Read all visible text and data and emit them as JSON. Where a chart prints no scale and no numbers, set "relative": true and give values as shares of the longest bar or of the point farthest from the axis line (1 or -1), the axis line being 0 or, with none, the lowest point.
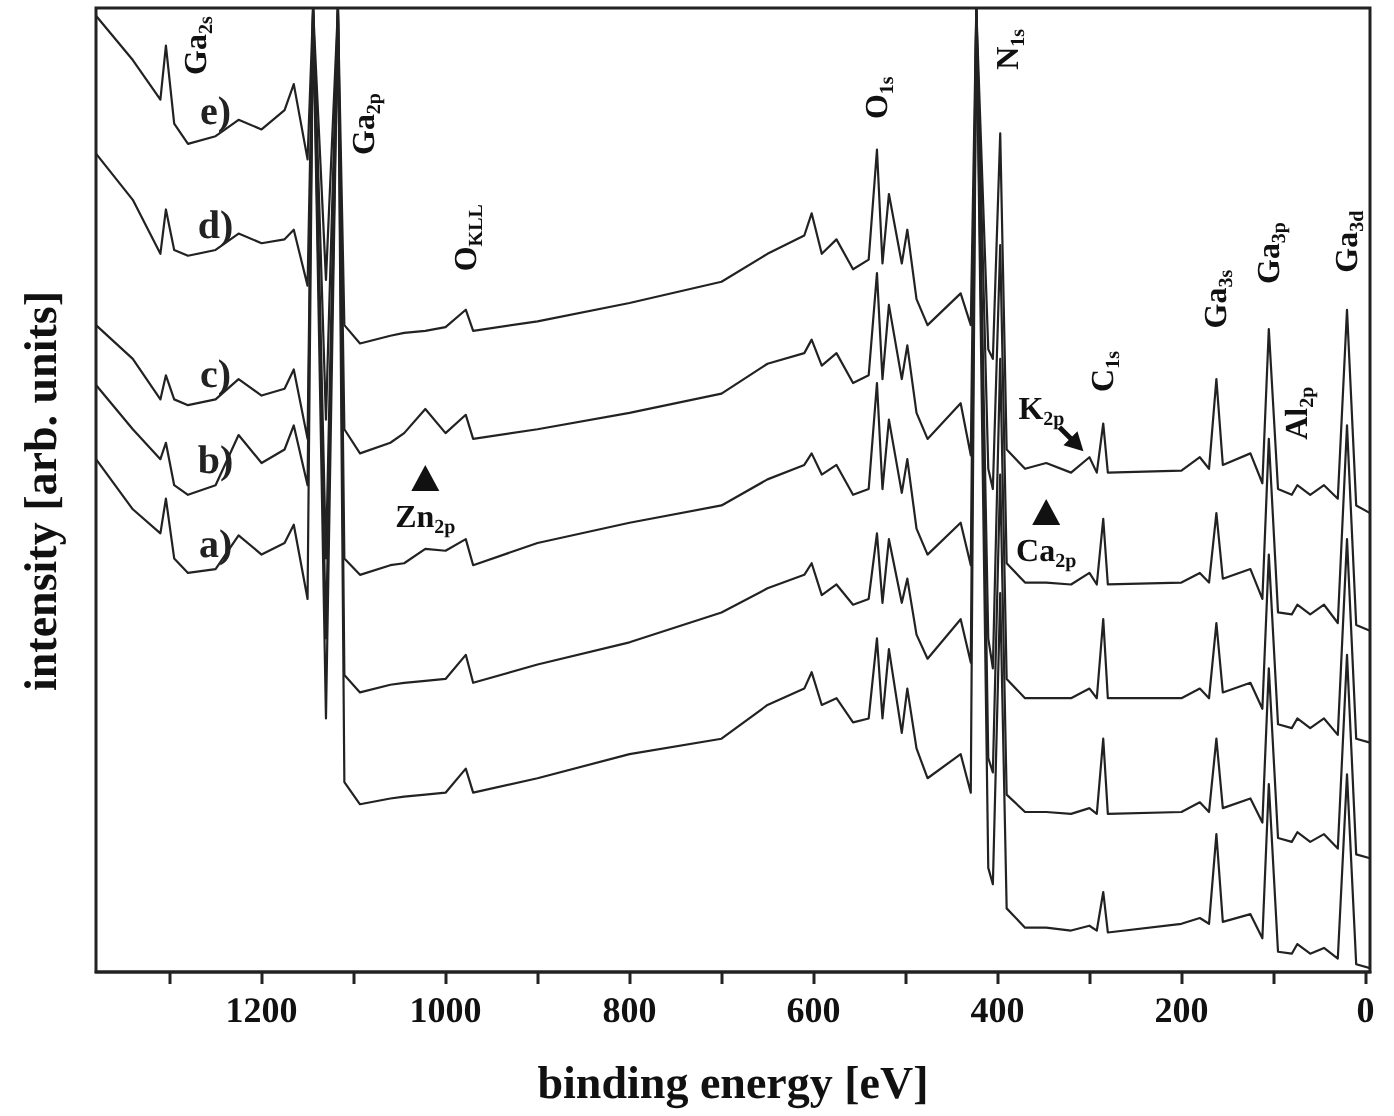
{
  "chart_data": {
    "type": "line",
    "relative": true,
    "xlabel": "binding energy [eV]",
    "ylabel": "intensity [arb. units]",
    "xlim": [
      1380,
      -5
    ],
    "xticks": [
      {
        "value": 1300,
        "label": null
      },
      1200,
      {
        "value": 1100,
        "label": null
      },
      1000,
      {
        "value": 900,
        "label": null
      },
      800,
      {
        "value": 700,
        "label": null
      },
      600,
      {
        "value": 500,
        "label": null
      },
      400,
      {
        "value": 300,
        "label": null
      },
      200,
      {
        "value": 100,
        "label": null
      },
      0
    ],
    "x": [
      1380,
      1340,
      1310,
      1304,
      1295,
      1280,
      1250,
      1225,
      1200,
      1175,
      1165,
      1150,
      1144,
      1130,
      1117,
      1110,
      1093,
      1060,
      1045,
      1022,
      1000,
      978,
      970,
      900,
      800,
      700,
      650,
      610,
      602,
      591,
      575,
      557,
      540,
      531,
      525,
      518,
      504,
      498,
      488,
      476,
      440,
      429,
      423,
      410,
      405,
      397,
      390,
      370,
      347,
      320,
      300,
      292,
      285,
      280,
      200,
      180,
      170,
      162,
      155,
      125,
      112,
      105,
      95,
      80,
      74,
      60,
      45,
      30,
      20,
      10,
      -5
    ],
    "series": [
      {
        "name": "e)",
        "color": "#222222",
        "values": [
          0.992,
          0.946,
          0.905,
          0.961,
          0.88,
          0.859,
          0.867,
          0.884,
          0.874,
          0.894,
          0.921,
          0.843,
          1,
          0.718,
          1,
          0.671,
          0.652,
          0.66,
          0.663,
          0.665,
          0.669,
          0.687,
          0.665,
          0.675,
          0.694,
          0.716,
          0.745,
          0.764,
          0.787,
          0.745,
          0.76,
          0.729,
          0.739,
          0.853,
          0.735,
          0.807,
          0.735,
          0.77,
          0.698,
          0.671,
          0.704,
          0.671,
          1,
          0.646,
          0.636,
          0.87,
          0.542,
          0.522,
          0.528,
          0.518,
          0.534,
          0.518,
          0.569,
          0.518,
          0.52,
          0.534,
          0.522,
          0.615,
          0.526,
          0.538,
          0.507,
          0.667,
          0.501,
          0.495,
          0.505,
          0.495,
          0.505,
          0.491,
          0.687,
          0.484,
          0.476
        ]
      },
      {
        "name": "d)",
        "color": "#222222",
        "values": [
          0.849,
          0.801,
          0.745,
          0.791,
          0.749,
          0.743,
          0.749,
          0.766,
          0.756,
          0.76,
          0.77,
          0.712,
          1,
          0.573,
          1,
          0.563,
          0.538,
          0.549,
          0.559,
          0.584,
          0.559,
          0.578,
          0.553,
          0.563,
          0.58,
          0.6,
          0.631,
          0.642,
          0.656,
          0.629,
          0.642,
          0.611,
          0.619,
          0.725,
          0.615,
          0.692,
          0.615,
          0.65,
          0.58,
          0.553,
          0.59,
          0.536,
          1,
          0.522,
          0.501,
          0.754,
          0.424,
          0.404,
          0.404,
          0.402,
          0.414,
          0.402,
          0.47,
          0.402,
          0.404,
          0.414,
          0.404,
          0.476,
          0.408,
          0.418,
          0.387,
          0.553,
          0.373,
          0.371,
          0.381,
          0.371,
          0.381,
          0.362,
          0.567,
          0.36,
          0.354
        ]
      },
      {
        "name": "c)",
        "color": "#222222",
        "values": [
          0.671,
          0.636,
          0.594,
          0.619,
          0.594,
          0.588,
          0.594,
          0.615,
          0.598,
          0.605,
          0.625,
          0.553,
          1,
          0.429,
          1,
          0.429,
          0.412,
          0.422,
          0.424,
          0.439,
          0.437,
          0.449,
          0.422,
          0.445,
          0.466,
          0.484,
          0.511,
          0.526,
          0.538,
          0.516,
          0.526,
          0.495,
          0.501,
          0.611,
          0.501,
          0.573,
          0.497,
          0.532,
          0.46,
          0.433,
          0.466,
          0.422,
          1,
          0.346,
          0.315,
          0.636,
          0.304,
          0.284,
          0.284,
          0.284,
          0.294,
          0.284,
          0.366,
          0.284,
          0.284,
          0.294,
          0.284,
          0.362,
          0.29,
          0.3,
          0.273,
          0.433,
          0.257,
          0.253,
          0.263,
          0.253,
          0.263,
          0.246,
          0.449,
          0.242,
          0.238
        ]
      },
      {
        "name": "b)",
        "color": "#222222",
        "values": [
          0.609,
          0.563,
          0.532,
          0.549,
          0.505,
          0.495,
          0.505,
          0.557,
          0.528,
          0.542,
          0.567,
          0.505,
          1,
          0.346,
          1,
          0.308,
          0.29,
          0.298,
          0.3,
          0.302,
          0.304,
          0.329,
          0.3,
          0.319,
          0.342,
          0.373,
          0.398,
          0.412,
          0.424,
          0.391,
          0.402,
          0.381,
          0.387,
          0.455,
          0.383,
          0.449,
          0.383,
          0.408,
          0.35,
          0.325,
          0.366,
          0.321,
          1,
          0.222,
          0.207,
          0.516,
          0.184,
          0.166,
          0.166,
          0.164,
          0.17,
          0.164,
          0.242,
          0.164,
          0.166,
          0.176,
          0.166,
          0.242,
          0.17,
          0.18,
          0.155,
          0.315,
          0.139,
          0.135,
          0.145,
          0.135,
          0.143,
          0.128,
          0.329,
          0.122,
          0.118
        ]
      },
      {
        "name": "a)",
        "color": "#222222",
        "values": [
          0.532,
          0.48,
          0.455,
          0.491,
          0.429,
          0.414,
          0.418,
          0.453,
          0.433,
          0.445,
          0.464,
          0.387,
          1,
          0.263,
          1,
          0.197,
          0.174,
          0.18,
          0.182,
          0.184,
          0.186,
          0.211,
          0.186,
          0.201,
          0.226,
          0.242,
          0.277,
          0.294,
          0.311,
          0.277,
          0.284,
          0.259,
          0.263,
          0.346,
          0.263,
          0.335,
          0.248,
          0.294,
          0.232,
          0.201,
          0.226,
          0.186,
          1,
          0.108,
          0.091,
          0.393,
          0.066,
          0.046,
          0.046,
          0.043,
          0.048,
          0.043,
          0.083,
          0.041,
          0.05,
          0.056,
          0.05,
          0.143,
          0.052,
          0.06,
          0.035,
          0.195,
          0.021,
          0.019,
          0.029,
          0.019,
          0.025,
          0.014,
          0.205,
          0.008,
          0.004
        ]
      }
    ],
    "annotations": [
      {
        "text": "Ga$_{2s}$",
        "x": 1304,
        "y": 0.961
      },
      {
        "text": "Ga$_{2p}$",
        "x": 1117,
        "y": 1
      },
      {
        "text": "O$_{KLL}$",
        "x": 978,
        "y": 0.687
      },
      {
        "text": "O$_{1s}$",
        "x": 531,
        "y": 0.853
      },
      {
        "text": "N$_{1s}$",
        "x": 397,
        "y": 0.87
      },
      {
        "text": "K$_{2p}$",
        "x": 300,
        "y": 0.534
      },
      {
        "text": "C$_{1s}$",
        "x": 285,
        "y": 0.569
      },
      {
        "text": "Ca$_{2p}$",
        "x": 347,
        "y": 0.528
      },
      {
        "text": "Ga$_{3s}$",
        "x": 162,
        "y": 0.615
      },
      {
        "text": "Ga$_{3p}$",
        "x": 105,
        "y": 0.667
      },
      {
        "text": "Al$_{2p}$",
        "x": 74,
        "y": 0.505
      },
      {
        "text": "Ga$_{3d}$",
        "x": 20,
        "y": 0.687
      },
      {
        "text": "Zn$_{2p}$",
        "x": 1022,
        "y": 0.584
      }
    ]
  }
}
